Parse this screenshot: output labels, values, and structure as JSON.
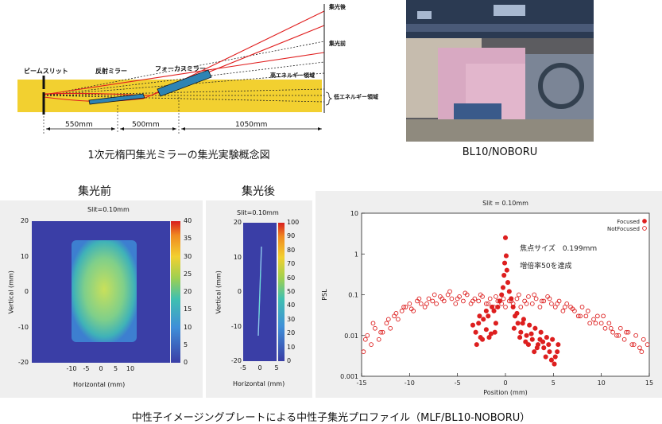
{
  "schematic": {
    "labels": {
      "beam_slit": "ビームスリット",
      "reflect_mirror": "反射ミラー",
      "focus_mirror": "フォーカスミラー",
      "after_focus": "集光後",
      "before_focus": "集光前",
      "high_energy": "高エネルギー領域",
      "low_energy": "低エネルギー領域"
    },
    "distances": [
      "550mm",
      "500mm",
      "1050mm"
    ],
    "caption": "1次元楕円集光ミラーの集光実験概念図"
  },
  "photo": {
    "caption": "BL10/NOBORU"
  },
  "map_before": {
    "title": "集光前",
    "slit": "Slit=0.10mm",
    "x_ticks": [
      "-10",
      "-5",
      "0",
      "5",
      "10"
    ],
    "y_ticks": [
      "20",
      "10",
      "0",
      "-10",
      "-20"
    ],
    "x_label": "Horizontal (mm)",
    "y_label": "Vertical (mm)",
    "cbar_ticks": [
      "40",
      "35",
      "30",
      "25",
      "20",
      "15",
      "10",
      "5",
      "0"
    ]
  },
  "map_after": {
    "title": "集光後",
    "slit": "Slit=0.10mm",
    "x_ticks": [
      "-5",
      "0",
      "5"
    ],
    "y_ticks": [
      "20",
      "10",
      "0",
      "-10",
      "-20"
    ],
    "x_label": "Horizontal (mm)",
    "y_label": "Vertical (mm)",
    "cbar_ticks": [
      "100",
      "90",
      "80",
      "70",
      "60",
      "50",
      "40",
      "30",
      "20",
      "10",
      "0"
    ]
  },
  "chart_data": {
    "type": "scatter",
    "title": "Slit = 0.10mm",
    "xlabel": "Position (mm)",
    "ylabel": "PSL",
    "xlim": [
      -15,
      15
    ],
    "ylim": [
      0.001,
      10
    ],
    "y_scale": "log",
    "x_ticks": [
      "-15",
      "-10",
      "-5",
      "0",
      "5",
      "10",
      "15"
    ],
    "y_ticks": [
      "10",
      "1",
      "0.1",
      "0.01",
      "0.001"
    ],
    "legend_position": "top-right",
    "annotation_line1": "焦点サイズ　0.199mm",
    "annotation_line2": "増倍率50を達成",
    "series": [
      {
        "name": "Focused",
        "marker": "filled-circle",
        "color": "#dd1f1f",
        "x": [
          -3.4,
          -3.1,
          -2.8,
          -2.6,
          -2.3,
          -2.0,
          -1.8,
          -1.5,
          -1.2,
          -1.0,
          -0.8,
          -0.6,
          -0.4,
          -0.25,
          -0.15,
          -0.08,
          0.0,
          0.08,
          0.15,
          0.25,
          0.4,
          0.6,
          0.8,
          1.0,
          1.3,
          1.6,
          1.9,
          2.2,
          2.5,
          2.8,
          3.1,
          3.4,
          3.7,
          4.0,
          4.3,
          4.6,
          4.9,
          5.2,
          5.5,
          -3.0,
          -2.4,
          -1.7,
          -1.1,
          1.2,
          1.8,
          2.4,
          3.0,
          3.6,
          4.2,
          4.8,
          5.4,
          -2.7,
          -2.0,
          -1.4,
          0.9,
          1.5,
          2.1,
          2.7,
          3.3,
          3.9,
          4.5,
          5.1
        ],
        "y": [
          0.018,
          0.012,
          0.02,
          0.009,
          0.025,
          0.014,
          0.03,
          0.011,
          0.04,
          0.02,
          0.05,
          0.07,
          0.1,
          0.15,
          0.3,
          0.6,
          2.5,
          0.9,
          0.4,
          0.2,
          0.12,
          0.08,
          0.05,
          0.03,
          0.02,
          0.012,
          0.025,
          0.01,
          0.018,
          0.008,
          0.015,
          0.006,
          0.012,
          0.005,
          0.009,
          0.004,
          0.008,
          0.003,
          0.006,
          0.006,
          0.008,
          0.009,
          0.012,
          0.035,
          0.02,
          0.006,
          0.004,
          0.008,
          0.003,
          0.0025,
          0.004,
          0.03,
          0.04,
          0.05,
          0.015,
          0.009,
          0.007,
          0.011,
          0.005,
          0.007,
          0.006,
          0.002
        ]
      },
      {
        "name": "NotFocused",
        "marker": "open-circle",
        "color": "#dd1f1f",
        "x": [
          -14.8,
          -14.4,
          -14.0,
          -13.6,
          -13.2,
          -12.8,
          -12.4,
          -12.0,
          -11.6,
          -11.2,
          -10.8,
          -10.4,
          -10.0,
          -9.6,
          -9.2,
          -8.8,
          -8.4,
          -8.0,
          -7.6,
          -7.2,
          -6.8,
          -6.4,
          -6.0,
          -5.6,
          -5.2,
          -4.8,
          -4.4,
          -4.0,
          -3.6,
          -3.2,
          -2.8,
          -2.4,
          -2.0,
          -1.6,
          -1.2,
          -0.8,
          -0.4,
          0.0,
          0.4,
          0.8,
          1.2,
          1.6,
          2.0,
          2.4,
          2.8,
          3.2,
          3.6,
          4.0,
          4.4,
          4.8,
          5.2,
          5.6,
          6.0,
          6.4,
          6.8,
          7.2,
          7.6,
          8.0,
          8.4,
          8.8,
          9.2,
          9.6,
          10.0,
          10.4,
          10.8,
          11.2,
          11.6,
          12.0,
          12.4,
          12.8,
          13.2,
          13.6,
          14.0,
          14.4,
          14.8,
          -14.6,
          -13.8,
          -13.0,
          -12.2,
          -11.4,
          -10.6,
          -9.8,
          -9.0,
          -8.2,
          -7.4,
          -6.6,
          -5.8,
          -5.0,
          -4.2,
          -3.4,
          -2.6,
          -1.8,
          -1.0,
          -0.2,
          0.6,
          1.4,
          2.2,
          3.0,
          3.8,
          4.6,
          5.4,
          6.2,
          7.0,
          7.8,
          8.6,
          9.4,
          10.2,
          11.0,
          11.8,
          12.6,
          13.4,
          14.2
        ],
        "y": [
          0.004,
          0.01,
          0.006,
          0.015,
          0.008,
          0.012,
          0.02,
          0.015,
          0.03,
          0.025,
          0.04,
          0.05,
          0.06,
          0.04,
          0.07,
          0.06,
          0.05,
          0.08,
          0.07,
          0.06,
          0.09,
          0.07,
          0.1,
          0.08,
          0.06,
          0.09,
          0.07,
          0.1,
          0.06,
          0.08,
          0.07,
          0.09,
          0.06,
          0.08,
          0.05,
          0.07,
          0.06,
          0.05,
          0.07,
          0.06,
          0.08,
          0.05,
          0.07,
          0.09,
          0.06,
          0.08,
          0.05,
          0.07,
          0.09,
          0.06,
          0.05,
          0.07,
          0.04,
          0.06,
          0.05,
          0.04,
          0.03,
          0.05,
          0.03,
          0.02,
          0.025,
          0.03,
          0.02,
          0.015,
          0.02,
          0.012,
          0.01,
          0.015,
          0.008,
          0.012,
          0.006,
          0.01,
          0.005,
          0.008,
          0.006,
          0.008,
          0.02,
          0.012,
          0.025,
          0.035,
          0.05,
          0.045,
          0.08,
          0.06,
          0.1,
          0.08,
          0.12,
          0.08,
          0.11,
          0.07,
          0.1,
          0.06,
          0.09,
          0.08,
          0.07,
          0.1,
          0.06,
          0.1,
          0.07,
          0.08,
          0.06,
          0.05,
          0.045,
          0.03,
          0.04,
          0.02,
          0.03,
          0.015,
          0.01,
          0.012,
          0.006,
          0.004
        ]
      }
    ]
  },
  "bottom_caption": "中性子イメージングプレートによる中性子集光プロファイル（MLF/BL10-NOBORU）"
}
